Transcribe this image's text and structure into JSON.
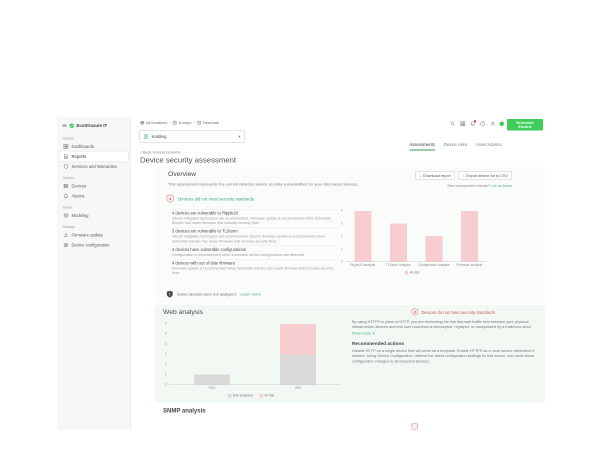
{
  "colors": {
    "accent_green": "#3dcd58",
    "tab_active_green": "#2f9e4f",
    "link_teal": "#45a28e",
    "alert_red": "#c95f63",
    "risk_pink": "#f8cdd1",
    "not_analyzed_gray": "#d9d9d9"
  },
  "icons": {
    "back_chevron": "‹",
    "breadcrumb_separator": "›",
    "dropdown_chevron": "▾",
    "download_arrow": "↓",
    "show_more_chevron": "∨",
    "help_glyph": "?"
  },
  "header": {
    "product_logo": "EcoStruxure IT",
    "breadcrumb": [
      {
        "label": "All locations"
      },
      {
        "label": "Europe"
      },
      {
        "label": "Denmark"
      }
    ],
    "location_selector": {
      "value": "Kolding"
    },
    "brand": {
      "line1": "Schneider",
      "line2": "Electric"
    }
  },
  "sidebar": {
    "sections": [
      {
        "label": "Assess",
        "items": [
          {
            "label": "Dashboards"
          },
          {
            "label": "Reports"
          },
          {
            "label": "Services and Warranties"
          }
        ]
      },
      {
        "label": "Monitor",
        "items": [
          {
            "label": "Devices"
          },
          {
            "label": "Alarms"
          }
        ]
      },
      {
        "label": "Model",
        "items": [
          {
            "label": "Modeling"
          }
        ]
      },
      {
        "label": "Manage",
        "items": [
          {
            "label": "Firmware update"
          },
          {
            "label": "Device configuration"
          }
        ]
      }
    ]
  },
  "tabs": [
    {
      "label": "Assessments"
    },
    {
      "label": "Device risks"
    },
    {
      "label": "Asset Advisor"
    }
  ],
  "page": {
    "back_link": "Back to Assessments",
    "title": "Device security assessment"
  },
  "toolbar": {
    "download_label": "Download report",
    "export_label": "Export device list to CSV",
    "feedback_text": "See unexpected results?",
    "feedback_link": "Let us know"
  },
  "overview": {
    "heading": "Overview",
    "description": "This assessment represents the current detected device security vulnerabilities for your discovered devices.",
    "alert": {
      "count": "4",
      "text": "Devices did not meet security standards"
    },
    "issues": [
      {
        "title": "4 devices are vulnerable to Ripple20",
        "description": "Interim mitigation techniques are recommended. Firmware update is recommended when Schneider Electric has newer firmware that includes security fixes."
      },
      {
        "title": "3 devices are vulnerable to TLStorm",
        "description": "Interim mitigation techniques are recommended. Device firmware update is recommended when Schneider Electric has newer firmware that includes security fixes."
      },
      {
        "title": "2 devices have vulnerable configurations",
        "description": "Configuration is recommended when vulnerable device configurations are detected."
      },
      {
        "title": "4 devices with out of date firmware",
        "description": "Firmware update is recommended when Schneider Electric has newer firmware that includes security fixes."
      }
    ],
    "not_analyzed": {
      "text": "Some devices were not analyzed.",
      "link": "Learn more"
    }
  },
  "web_analysis": {
    "heading": "Web analysis",
    "alert": {
      "count": "3",
      "text": "Devices do not meet security standards"
    },
    "description": "By using HTTPS in place of HTTP, you are minimizing the risk that web traffic sent between your physical infrastructure devices and end user machines is intercepted, replayed, or manipulated by a malicious actor.",
    "show_more": "Show more",
    "recommended": {
      "heading": "Recommended actions",
      "text": "Disable HTTP on a single device that will serve as a template. Enable HTTPS as a more secure alternative if desired. Using Device Configuration, retrieve the latest configuration settings for this device, and clone these configuration changes to all impacted devices."
    }
  },
  "next_section": {
    "heading": "SNMP analysis"
  },
  "chart_data": [
    {
      "type": "bar",
      "title": "",
      "categories": [
        "Ripple20 analysis",
        "TLStorm analysis",
        "Configuration analysis",
        "Firmware analysis"
      ],
      "series": [
        {
          "name": "At risk",
          "color": "#f8cdd1",
          "values": [
            4,
            3,
            2,
            4
          ]
        }
      ],
      "ylim": [
        0,
        4
      ],
      "grid": false,
      "legend_position": "bottom"
    },
    {
      "type": "bar",
      "stacked": true,
      "title": "",
      "categories": [
        "PDU",
        "UPS"
      ],
      "series": [
        {
          "name": "Not analyzed",
          "color": "#d9d9d9",
          "values": [
            1,
            3
          ]
        },
        {
          "name": "At risk",
          "color": "#f8cdd1",
          "values": [
            0,
            3
          ]
        }
      ],
      "ylim": [
        0,
        6
      ],
      "grid": false,
      "legend_position": "bottom"
    }
  ]
}
